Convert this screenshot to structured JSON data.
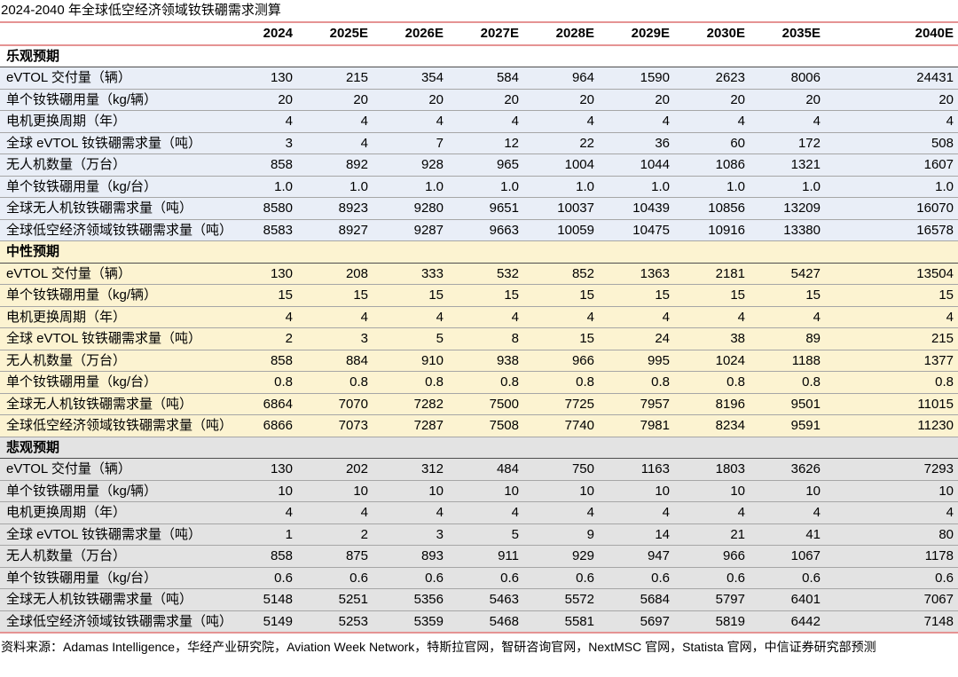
{
  "title": "2024-2040 年全球低空经济领域钕铁硼需求测算",
  "table": {
    "columns": [
      "2024",
      "2025E",
      "2026E",
      "2027E",
      "2028E",
      "2029E",
      "2030E",
      "2035E",
      "2040E"
    ],
    "sections": [
      {
        "label": "乐观预期",
        "theme": "optimistic",
        "rows": [
          {
            "label": "eVTOL 交付量（辆）",
            "values": [
              130,
              215,
              354,
              584,
              964,
              1590,
              2623,
              8006,
              24431
            ]
          },
          {
            "label": "单个钕铁硼用量（kg/辆）",
            "values": [
              20,
              20,
              20,
              20,
              20,
              20,
              20,
              20,
              20
            ]
          },
          {
            "label": "电机更换周期（年）",
            "values": [
              4,
              4,
              4,
              4,
              4,
              4,
              4,
              4,
              4
            ]
          },
          {
            "label": "全球 eVTOL 钕铁硼需求量（吨）",
            "values": [
              3,
              4,
              7,
              12,
              22,
              36,
              60,
              172,
              508
            ]
          },
          {
            "label": "无人机数量（万台）",
            "values": [
              858,
              892,
              928,
              965,
              1004,
              1044,
              1086,
              1321,
              1607
            ]
          },
          {
            "label": "单个钕铁硼用量（kg/台）",
            "values": [
              "1.0",
              "1.0",
              "1.0",
              "1.0",
              "1.0",
              "1.0",
              "1.0",
              "1.0",
              "1.0"
            ]
          },
          {
            "label": "全球无人机钕铁硼需求量（吨）",
            "values": [
              8580,
              8923,
              9280,
              9651,
              10037,
              10439,
              10856,
              13209,
              16070
            ]
          },
          {
            "label": "全球低空经济领域钕铁硼需求量（吨）",
            "values": [
              8583,
              8927,
              9287,
              9663,
              10059,
              10475,
              10916,
              13380,
              16578
            ]
          }
        ]
      },
      {
        "label": "中性预期",
        "theme": "neutral",
        "rows": [
          {
            "label": "eVTOL 交付量（辆）",
            "values": [
              130,
              208,
              333,
              532,
              852,
              1363,
              2181,
              5427,
              13504
            ]
          },
          {
            "label": "单个钕铁硼用量（kg/辆）",
            "values": [
              15,
              15,
              15,
              15,
              15,
              15,
              15,
              15,
              15
            ]
          },
          {
            "label": "电机更换周期（年）",
            "values": [
              4,
              4,
              4,
              4,
              4,
              4,
              4,
              4,
              4
            ]
          },
          {
            "label": "全球 eVTOL 钕铁硼需求量（吨）",
            "values": [
              2,
              3,
              5,
              8,
              15,
              24,
              38,
              89,
              215
            ]
          },
          {
            "label": "无人机数量（万台）",
            "values": [
              858,
              884,
              910,
              938,
              966,
              995,
              1024,
              1188,
              1377
            ]
          },
          {
            "label": "单个钕铁硼用量（kg/台）",
            "values": [
              "0.8",
              "0.8",
              "0.8",
              "0.8",
              "0.8",
              "0.8",
              "0.8",
              "0.8",
              "0.8"
            ]
          },
          {
            "label": "全球无人机钕铁硼需求量（吨）",
            "values": [
              6864,
              7070,
              7282,
              7500,
              7725,
              7957,
              8196,
              9501,
              11015
            ]
          },
          {
            "label": "全球低空经济领域钕铁硼需求量（吨）",
            "values": [
              6866,
              7073,
              7287,
              7508,
              7740,
              7981,
              8234,
              9591,
              11230
            ]
          }
        ]
      },
      {
        "label": "悲观预期",
        "theme": "pessimistic",
        "rows": [
          {
            "label": "eVTOL 交付量（辆）",
            "values": [
              130,
              202,
              312,
              484,
              750,
              1163,
              1803,
              3626,
              7293
            ]
          },
          {
            "label": "单个钕铁硼用量（kg/辆）",
            "values": [
              10,
              10,
              10,
              10,
              10,
              10,
              10,
              10,
              10
            ]
          },
          {
            "label": "电机更换周期（年）",
            "values": [
              4,
              4,
              4,
              4,
              4,
              4,
              4,
              4,
              4
            ]
          },
          {
            "label": "全球 eVTOL 钕铁硼需求量（吨）",
            "values": [
              1,
              2,
              3,
              5,
              9,
              14,
              21,
              41,
              80
            ]
          },
          {
            "label": "无人机数量（万台）",
            "values": [
              858,
              875,
              893,
              911,
              929,
              947,
              966,
              1067,
              1178
            ]
          },
          {
            "label": "单个钕铁硼用量（kg/台）",
            "values": [
              "0.6",
              "0.6",
              "0.6",
              "0.6",
              "0.6",
              "0.6",
              "0.6",
              "0.6",
              "0.6"
            ]
          },
          {
            "label": "全球无人机钕铁硼需求量（吨）",
            "values": [
              5148,
              5251,
              5356,
              5463,
              5572,
              5684,
              5797,
              6401,
              7067
            ]
          },
          {
            "label": "全球低空经济领域钕铁硼需求量（吨）",
            "values": [
              5149,
              5253,
              5359,
              5468,
              5581,
              5697,
              5819,
              6442,
              7148
            ]
          }
        ]
      }
    ]
  },
  "source": "资料来源：Adamas Intelligence，华经产业研究院，Aviation Week Network，特斯拉官网，智研咨询官网，NextMSC 官网，Statista 官网，中信证券研究部预测",
  "colors": {
    "accent_line": "#e59393",
    "optimistic_row_bg": "#e9eef7",
    "optimistic_header_bg": "#ffffff",
    "neutral_bg": "#fcf3d1",
    "pessimistic_bg": "#e3e3e3",
    "row_border": "#a6a6a6",
    "section_border": "#4d4d4d"
  }
}
